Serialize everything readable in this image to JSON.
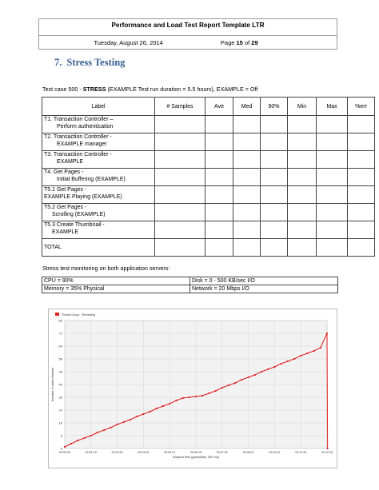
{
  "header": {
    "title": "Performance and Load Test Report Template LTR",
    "date": "Tuesday, August 26, 2014",
    "page_prefix": "Page ",
    "page_num": "15",
    "page_of": " of ",
    "page_total": "29"
  },
  "section": {
    "number": "7.",
    "title": "Stress Testing"
  },
  "caption": {
    "before": "Test case 500 - ",
    "bold": "STRESS",
    "after": " (EXAMPLE Test run duration = 5.5 hours), EXAMPLE = Off"
  },
  "table": {
    "headers": [
      "Label",
      "# Samples",
      "Ave",
      "Med",
      "90%",
      "Min",
      "Max",
      "%err"
    ],
    "rows": [
      [
        "T1. Transaction Controller –",
        "Perform authentication"
      ],
      [
        "T2. Transaction Controller -",
        "EXAMPLE manager"
      ],
      [
        "T3. Transaction Controller -",
        "EXAMPLE"
      ],
      [
        "T4. Get Pages -",
        "Initial Buffering (EXAMPLE)"
      ],
      [
        "T5.1 Get Pages -",
        "EXAMPLE Playing (EXAMPLE)"
      ],
      [
        "T5.2 Get Pages -",
        "Scrolling (EXAMPLE)"
      ],
      [
        "T5.3 Create Thumbnail -",
        "EXAMPLE"
      ]
    ],
    "total": "TOTAL"
  },
  "monitoring": {
    "caption": "Stress test monitoring on both application servers:",
    "rows": [
      [
        "CPU = 90%",
        "Disk = 0 - 500 KB/sec   I/O"
      ],
      [
        "Memory = 35% Physical",
        "Network = 20 Mbps   I/O"
      ]
    ]
  },
  "chart_data": {
    "type": "line",
    "legend": "Thread Group - Reviewing",
    "xlabel": "Elapsed time (granularity: 500 ms)",
    "ylabel": "Number of active threads",
    "ylim": [
      0,
      80
    ],
    "yticks": [
      0,
      8,
      16,
      24,
      32,
      40,
      48,
      56,
      64,
      72,
      80
    ],
    "xticks": [
      "00:00:00",
      "00:01:15",
      "00:02:30",
      "00:03:45",
      "00:05:01",
      "00:06:18",
      "00:07:32",
      "00:08:47",
      "00:10:02",
      "00:11:18",
      "00:12:33"
    ],
    "series": [
      {
        "name": "Thread Group - Reviewing",
        "color": "#e02020",
        "x": [
          0,
          0.25,
          0.5,
          0.75,
          1,
          1.25,
          1.5,
          1.75,
          2,
          2.25,
          2.5,
          2.75,
          3,
          3.25,
          3.5,
          3.75,
          4,
          4.25,
          4.5,
          4.75,
          5,
          5.25,
          5.5,
          5.75,
          6,
          6.25,
          6.5,
          6.75,
          7,
          7.25,
          7.5,
          7.75,
          8,
          8.25,
          8.5,
          8.75,
          9,
          9.25,
          9.5,
          9.75,
          10,
          10.02
        ],
        "y": [
          1,
          3,
          5,
          6.5,
          8,
          10,
          11.5,
          13,
          15,
          16.5,
          18,
          20,
          21.5,
          23,
          25,
          26.5,
          28,
          30,
          31.5,
          32,
          32.5,
          33,
          34.5,
          36,
          38,
          39.5,
          41,
          43,
          44.5,
          46,
          48,
          49.5,
          51,
          53,
          54.5,
          56,
          58,
          59.5,
          61,
          63,
          72,
          0
        ]
      }
    ]
  }
}
